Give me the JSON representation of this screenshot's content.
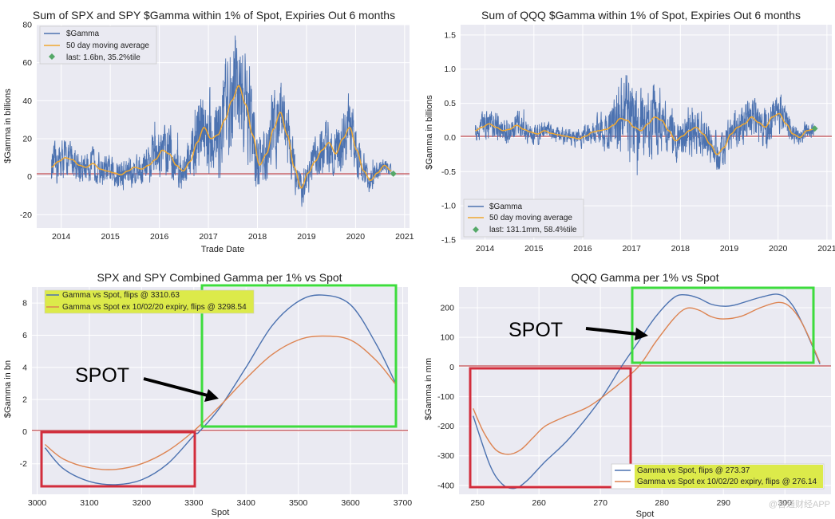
{
  "watermark": "@智通财经APP",
  "chart_data": [
    {
      "type": "line",
      "title": "Sum of SPX and SPY $Gamma within 1% of Spot, Expiries Out 6 months",
      "xlabel": "Trade Date",
      "ylabel": "$Gamma in billions",
      "xlim": [
        2013.5,
        2021.1
      ],
      "ylim": [
        -27,
        80
      ],
      "xticks": [
        2014,
        2015,
        2016,
        2017,
        2018,
        2019,
        2020,
        2021
      ],
      "xtick_labels": [
        "2014",
        "2015",
        "2016",
        "2017",
        "2018",
        "2019",
        "2020",
        "2021"
      ],
      "yticks": [
        -20,
        0,
        20,
        40,
        60,
        80
      ],
      "ytick_labels": [
        "-20",
        "0",
        "20",
        "40",
        "60",
        "80"
      ],
      "x_start": 2013.8,
      "x_end": 2020.73,
      "ma_values": [
        5,
        8,
        10,
        9,
        6,
        5,
        7,
        4,
        3,
        2,
        1,
        3,
        5,
        4,
        6,
        9,
        14,
        12,
        6,
        3,
        8,
        18,
        26,
        20,
        22,
        30,
        40,
        48,
        38,
        22,
        6,
        12,
        25,
        34,
        22,
        5,
        -6,
        2,
        8,
        14,
        18,
        12,
        20,
        26,
        14,
        3,
        -2,
        2,
        6,
        3
      ],
      "gamma_amplitude": [
        12,
        14,
        12,
        12,
        11,
        10,
        10,
        10,
        10,
        10,
        11,
        11,
        12,
        12,
        13,
        14,
        18,
        18,
        14,
        12,
        16,
        26,
        30,
        28,
        30,
        34,
        38,
        34,
        34,
        30,
        18,
        20,
        24,
        26,
        22,
        16,
        12,
        12,
        14,
        16,
        18,
        16,
        20,
        22,
        16,
        10,
        8,
        6,
        6,
        5
      ],
      "last_point": {
        "x": 2020.77,
        "y": 1.6
      },
      "legend": [
        "$Gamma",
        "50 day moving average",
        "last: 1.6bn, 35.2%tile"
      ],
      "legend_loc": "upper left"
    },
    {
      "type": "line",
      "title": "Sum of QQQ $Gamma within 1% of Spot, Expiries Out 6 months",
      "xlabel": "",
      "ylabel": "$Gamma in billions",
      "xlim": [
        2013.5,
        2021.1
      ],
      "ylim": [
        -1.5,
        1.65
      ],
      "xticks": [
        2014,
        2015,
        2016,
        2017,
        2018,
        2019,
        2020,
        2021
      ],
      "xtick_labels": [
        "2014",
        "2015",
        "2016",
        "2017",
        "2018",
        "2019",
        "2020",
        "2021"
      ],
      "yticks": [
        -1.5,
        -1.0,
        -0.5,
        0.0,
        0.5,
        1.0,
        1.5
      ],
      "ytick_labels": [
        "-1.5",
        "-1.0",
        "-0.5",
        "0.0",
        "0.5",
        "1.0",
        "1.5"
      ],
      "x_start": 2013.8,
      "x_end": 2020.73,
      "ma_values": [
        0.1,
        0.15,
        0.2,
        0.15,
        0.1,
        0.12,
        0.18,
        0.12,
        0.08,
        0.05,
        0.1,
        0.06,
        0.04,
        0.02,
        0.0,
        -0.02,
        0.02,
        0.08,
        0.1,
        0.12,
        0.18,
        0.28,
        0.25,
        0.15,
        0.1,
        0.2,
        0.3,
        0.25,
        0.1,
        -0.05,
        0.02,
        0.1,
        0.15,
        0.05,
        -0.1,
        -0.25,
        -0.15,
        0.05,
        0.15,
        0.2,
        0.3,
        0.22,
        0.15,
        0.3,
        0.35,
        0.2,
        0.05,
        0.0,
        0.1,
        0.12
      ],
      "gamma_amplitude": [
        0.2,
        0.25,
        0.3,
        0.28,
        0.25,
        0.25,
        0.25,
        0.22,
        0.2,
        0.2,
        0.18,
        0.18,
        0.16,
        0.15,
        0.15,
        0.16,
        0.2,
        0.22,
        0.3,
        0.4,
        0.5,
        0.7,
        0.8,
        0.8,
        0.7,
        0.6,
        0.65,
        0.6,
        0.5,
        0.45,
        0.4,
        0.42,
        0.45,
        0.4,
        0.35,
        0.35,
        0.35,
        0.35,
        0.35,
        0.38,
        0.4,
        0.4,
        0.38,
        0.4,
        0.38,
        0.3,
        0.2,
        0.15,
        0.15,
        0.14
      ],
      "last_point": {
        "x": 2020.75,
        "y": 0.131
      },
      "legend": [
        "$Gamma",
        "50 day moving average",
        "last: 131.1mm, 58.4%tile"
      ],
      "legend_loc": "lower left"
    },
    {
      "type": "line",
      "title": "SPX and SPY Combined Gamma per 1% vs Spot",
      "xlabel": "Spot",
      "ylabel": "$Gamma in bn",
      "xlim": [
        2990,
        3710
      ],
      "ylim": [
        -3.9,
        9.0
      ],
      "xticks": [
        3000,
        3100,
        3200,
        3300,
        3400,
        3500,
        3600,
        3700
      ],
      "xtick_labels": [
        "3000",
        "3100",
        "3200",
        "3300",
        "3400",
        "3500",
        "3600",
        "3700"
      ],
      "yticks": [
        -2,
        0,
        2,
        4,
        6,
        8
      ],
      "ytick_labels": [
        "-2",
        "0",
        "2",
        "4",
        "6",
        "8"
      ],
      "series": [
        {
          "name": "Gamma vs Spot, flips @ 3310.63",
          "color": "#4c72b0",
          "x": [
            3015,
            3050,
            3100,
            3150,
            3200,
            3250,
            3300,
            3310.63,
            3350,
            3400,
            3450,
            3500,
            3545,
            3600,
            3650,
            3685
          ],
          "y": [
            -1.0,
            -2.3,
            -3.1,
            -3.3,
            -3.0,
            -2.0,
            -0.25,
            0.0,
            1.5,
            4.0,
            6.6,
            8.1,
            8.5,
            7.9,
            5.4,
            3.1
          ]
        },
        {
          "name": "Gamma vs Spot ex 10/02/20 expiry, flips @ 3298.54",
          "color": "#dd8452",
          "x": [
            3015,
            3050,
            3100,
            3150,
            3200,
            3250,
            3298.54,
            3350,
            3400,
            3450,
            3500,
            3545,
            3600,
            3650,
            3685
          ],
          "y": [
            -0.8,
            -1.7,
            -2.25,
            -2.35,
            -2.0,
            -1.2,
            0.0,
            1.6,
            3.3,
            4.8,
            5.7,
            5.95,
            5.7,
            4.4,
            3.0
          ]
        }
      ],
      "hline": 0,
      "legend": [
        "Gamma vs Spot, flips @ 3310.63",
        "Gamma vs Spot ex 10/02/20 expiry, flips @ 3298.54"
      ],
      "annotation": "SPOT",
      "legend_loc": "upper left"
    },
    {
      "type": "line",
      "title": "QQQ Gamma per 1% vs Spot",
      "xlabel": "Spot",
      "ylabel": "$Gamma in mm",
      "xlim": [
        247,
        307.5
      ],
      "ylim": [
        -430,
        270
      ],
      "xticks": [
        250,
        260,
        270,
        280,
        290,
        300
      ],
      "xtick_labels": [
        "250",
        "260",
        "270",
        "280",
        "290",
        "300"
      ],
      "yticks": [
        -400,
        -300,
        -200,
        -100,
        0,
        100,
        200
      ],
      "ytick_labels": [
        "-400",
        "-300",
        "-200",
        "-100",
        "0",
        "100",
        "200"
      ],
      "series": [
        {
          "name": "Gamma vs Spot, flips @ 273.37",
          "color": "#4c72b0",
          "x": [
            249.3,
            252,
            254,
            256,
            258,
            261,
            265,
            270,
            273.37,
            276,
            279,
            282,
            284,
            286,
            288,
            290,
            292,
            296,
            299,
            301,
            303,
            305.7
          ],
          "y": [
            -165,
            -330,
            -395,
            -410,
            -385,
            -320,
            -240,
            -110,
            0,
            80,
            170,
            235,
            243,
            232,
            212,
            205,
            210,
            235,
            245,
            215,
            140,
            10
          ]
        },
        {
          "name": "Gamma vs Spot ex 10/02/20 expiry, flips @ 276.14",
          "color": "#dd8452",
          "x": [
            249.3,
            251,
            253,
            255,
            257,
            259,
            261,
            264,
            268,
            272,
            276.14,
            279,
            282,
            284,
            286,
            288,
            290,
            293,
            296,
            299,
            301,
            303,
            305.7
          ],
          "y": [
            -140,
            -220,
            -280,
            -295,
            -280,
            -240,
            -200,
            -170,
            -135,
            -75,
            0,
            85,
            165,
            198,
            192,
            170,
            162,
            172,
            200,
            218,
            200,
            140,
            15
          ]
        }
      ],
      "hline": 0,
      "legend": [
        "Gamma vs Spot, flips @ 273.37",
        "Gamma vs Spot ex 10/02/20 expiry, flips @ 276.14"
      ],
      "annotation": "SPOT",
      "legend_loc": "lower right"
    }
  ]
}
